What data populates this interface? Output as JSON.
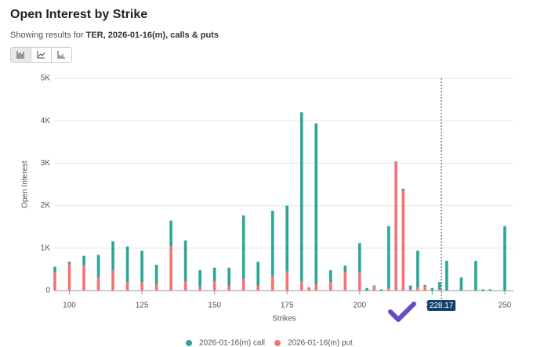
{
  "header": {
    "title": "Open Interest by Strike",
    "subtitle_prefix": "Showing results for",
    "subtitle_bold": "TER, 2026-01-16(m), calls & puts"
  },
  "chart_data": {
    "type": "stacked_bar",
    "x": [
      95,
      100,
      105,
      110,
      115,
      120,
      125,
      130,
      135,
      140,
      145,
      150,
      155,
      160,
      165,
      170,
      175,
      180,
      182.5,
      185,
      190,
      195,
      200,
      202.5,
      205,
      207.5,
      210,
      212.5,
      215,
      217.5,
      220,
      222.5,
      225,
      227.5,
      230,
      235,
      240,
      242.5,
      245,
      250
    ],
    "series": [
      {
        "name": "2026-01-16(m) call",
        "color": "#2aa597",
        "values": [
          130,
          60,
          220,
          530,
          680,
          840,
          740,
          460,
          600,
          960,
          390,
          320,
          420,
          1490,
          560,
          1550,
          1550,
          3980,
          0,
          3790,
          280,
          160,
          700,
          60,
          10,
          30,
          1470,
          20,
          50,
          90,
          860,
          20,
          60,
          170,
          700,
          310,
          700,
          30,
          30,
          1520
        ]
      },
      {
        "name": "2026-01-16(m) put",
        "color": "#f27474",
        "values": [
          430,
          620,
          600,
          310,
          480,
          200,
          200,
          150,
          1050,
          220,
          90,
          220,
          120,
          280,
          120,
          330,
          450,
          220,
          80,
          150,
          200,
          430,
          420,
          0,
          110,
          0,
          50,
          3020,
          2350,
          30,
          80,
          110,
          0,
          30,
          0,
          0,
          0,
          0,
          0,
          0
        ]
      }
    ],
    "xlim": [
      95,
      253
    ],
    "xticks": [
      100,
      125,
      150,
      175,
      200,
      225,
      250
    ],
    "ylim": [
      0,
      5000
    ],
    "yticks": [
      0,
      {
        "value": 1000,
        "label": "1K"
      },
      {
        "value": 2000,
        "label": "2K"
      },
      {
        "value": 3000,
        "label": "3K"
      },
      {
        "value": 4000,
        "label": "4K"
      },
      {
        "value": 5000,
        "label": "5K"
      }
    ],
    "grid": true,
    "xlabel": "Strikes",
    "ylabel": "Open Interest",
    "legend": "bottom",
    "current_price": 228.17
  }
}
